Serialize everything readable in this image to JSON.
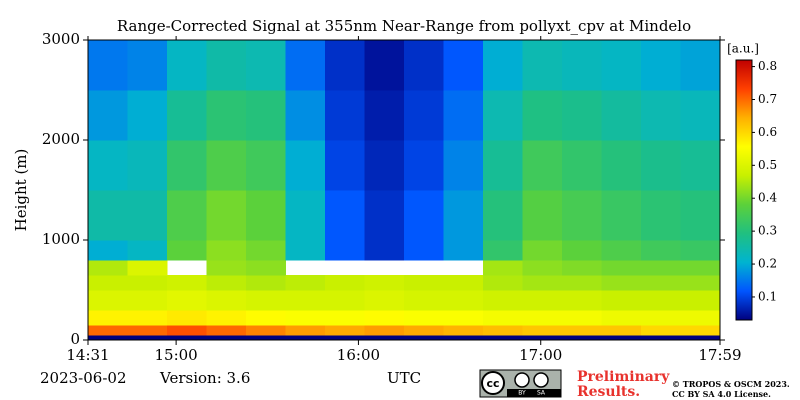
{
  "chart_data": {
    "type": "heatmap",
    "title": "Range-Corrected Signal at 355nm Near-Range from pollyxt_cpv at Mindelo",
    "y_label": "Height (m)",
    "x_label": "UTC",
    "xbins": [
      871,
      884,
      897,
      910,
      923,
      936,
      949,
      962,
      975,
      988,
      1001,
      1014,
      1027,
      1040,
      1053,
      1066,
      1079
    ],
    "ybins": [
      0,
      50,
      150,
      300,
      500,
      650,
      800,
      1000,
      1500,
      2000,
      2500,
      3000
    ],
    "values": [
      [
        0.03,
        0.03,
        0.03,
        0.03,
        0.03,
        0.03,
        0.03,
        0.03,
        0.03,
        0.03,
        0.03,
        0.03,
        0.03,
        0.03,
        0.03,
        0.03
      ],
      [
        0.7,
        0.7,
        0.72,
        0.7,
        0.68,
        0.66,
        0.65,
        0.66,
        0.65,
        0.64,
        0.63,
        0.62,
        0.62,
        0.62,
        0.6,
        0.6
      ],
      [
        0.57,
        0.57,
        0.58,
        0.57,
        0.56,
        0.55,
        0.55,
        0.56,
        0.55,
        0.55,
        0.54,
        0.54,
        0.54,
        0.53,
        0.53,
        0.53
      ],
      [
        0.5,
        0.5,
        0.51,
        0.5,
        0.49,
        0.49,
        0.49,
        0.5,
        0.49,
        0.49,
        0.48,
        0.48,
        0.48,
        0.47,
        0.47,
        0.47
      ],
      [
        0.47,
        0.47,
        0.48,
        0.46,
        0.45,
        0.46,
        0.47,
        0.48,
        0.47,
        0.47,
        0.45,
        0.44,
        0.44,
        0.43,
        0.43,
        0.43
      ],
      [
        0.45,
        0.5,
        null,
        0.43,
        0.42,
        null,
        null,
        null,
        null,
        null,
        0.44,
        0.42,
        0.41,
        0.4,
        0.4,
        0.4
      ],
      [
        0.2,
        0.22,
        0.38,
        0.42,
        0.4,
        0.22,
        0.12,
        0.08,
        0.12,
        0.18,
        0.32,
        0.4,
        0.38,
        0.36,
        0.34,
        0.33
      ],
      [
        0.25,
        0.25,
        0.36,
        0.4,
        0.38,
        0.22,
        0.12,
        0.08,
        0.12,
        0.18,
        0.3,
        0.37,
        0.35,
        0.33,
        0.31,
        0.3
      ],
      [
        0.22,
        0.23,
        0.32,
        0.36,
        0.34,
        0.2,
        0.1,
        0.07,
        0.1,
        0.16,
        0.27,
        0.34,
        0.32,
        0.3,
        0.28,
        0.27
      ],
      [
        0.18,
        0.2,
        0.27,
        0.31,
        0.3,
        0.17,
        0.09,
        0.06,
        0.09,
        0.14,
        0.24,
        0.29,
        0.28,
        0.26,
        0.24,
        0.23
      ],
      [
        0.15,
        0.16,
        0.22,
        0.25,
        0.24,
        0.14,
        0.08,
        0.05,
        0.08,
        0.12,
        0.2,
        0.24,
        0.23,
        0.22,
        0.2,
        0.19
      ]
    ],
    "xlim": [
      871,
      1079
    ],
    "xticks": [
      {
        "value": 871,
        "label": "14:31"
      },
      {
        "value": 900,
        "label": "15:00"
      },
      {
        "value": 960,
        "label": "16:00"
      },
      {
        "value": 1020,
        "label": "17:00"
      },
      {
        "value": 1079,
        "label": "17:59"
      }
    ],
    "ylim": [
      0,
      3000
    ],
    "yticks": [
      0,
      1000,
      2000,
      3000
    ],
    "clim": [
      0.03,
      0.82
    ],
    "cticks": [
      0.1,
      0.2,
      0.3,
      0.4,
      0.5,
      0.6,
      0.7,
      0.8
    ],
    "colorbar_label": "[a.u.]",
    "colormap": [
      "#00007f",
      "#0055ff",
      "#00b4d0",
      "#20c080",
      "#5cd13a",
      "#c8f000",
      "#ffff00",
      "#ffb000",
      "#ff4000",
      "#c00000"
    ]
  },
  "footer": {
    "date": "2023-06-02",
    "version": "Version: 3.6",
    "badge": {
      "cc": "cc",
      "by": "BY",
      "sa": "SA"
    },
    "status": [
      "Preliminary",
      "Results."
    ],
    "credit": [
      "© TROPOS & OSCM 2023.",
      "CC BY SA 4.0 License."
    ]
  }
}
